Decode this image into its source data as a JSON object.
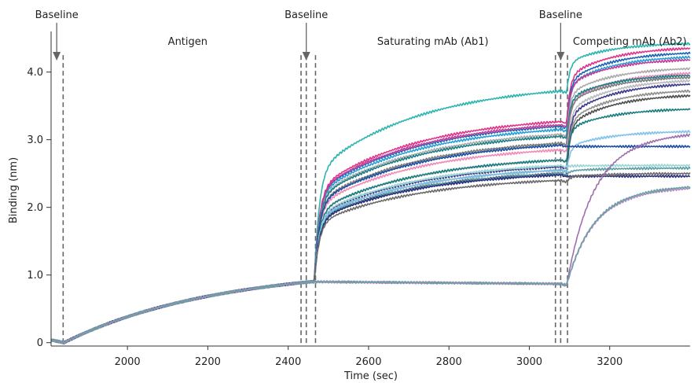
{
  "chart_data": {
    "type": "line",
    "xlabel": "Time (sec)",
    "ylabel": "Binding (nm)",
    "xlim": [
      1810,
      3400
    ],
    "ylim": [
      -0.05,
      4.6
    ],
    "x_ticks": [
      2000,
      2200,
      2400,
      2600,
      2800,
      3000,
      3200
    ],
    "y_ticks": [
      0,
      1.0,
      2.0,
      3.0,
      4.0
    ],
    "y_tick_labels": [
      "0",
      "1.0",
      "2.0",
      "3.0",
      "4.0"
    ],
    "grid": false,
    "phase_boundaries": [
      1840,
      2432,
      2445,
      2468,
      3065,
      3078,
      3095
    ],
    "phase_labels": [
      {
        "text": "Antigen",
        "x": 2150,
        "y": 4.45
      },
      {
        "text": "Saturating mAb (Ab1)",
        "x": 2760,
        "y": 4.45
      },
      {
        "text": "Competing mAb (Ab2)",
        "x": 3250,
        "y": 4.45
      }
    ],
    "baseline_markers": [
      {
        "text": "Baseline",
        "x": 1824
      },
      {
        "text": "Baseline",
        "x": 2445
      },
      {
        "text": "Baseline",
        "x": 3078
      }
    ],
    "series_model": {
      "antigen_start": 1842,
      "ab1_start": 2465,
      "ab2_start": 3093,
      "antigen_end_level": 0.9
    },
    "series": [
      {
        "color": "#2bb5b0",
        "ab1_end": 3.72,
        "ab2_end": 4.42
      },
      {
        "color": "#e0338a",
        "ab1_end": 3.27,
        "ab2_end": 4.35
      },
      {
        "color": "#1c63b4",
        "ab1_end": 3.2,
        "ab2_end": 4.28
      },
      {
        "color": "#27a0d8",
        "ab1_end": 3.15,
        "ab2_end": 4.22
      },
      {
        "color": "#c23c97",
        "ab1_end": 3.22,
        "ab2_end": 4.18
      },
      {
        "color": "#aaaaaa",
        "ab1_end": 3.08,
        "ab2_end": 4.05
      },
      {
        "color": "#f08ab8",
        "ab1_end": 2.85,
        "ab2_end": 3.98
      },
      {
        "color": "#1d7f86",
        "ab1_end": 3.05,
        "ab2_end": 3.95
      },
      {
        "color": "#7c7c7c",
        "ab1_end": 2.95,
        "ab2_end": 3.92
      },
      {
        "color": "#b9b9c2",
        "ab1_end": 2.7,
        "ab2_end": 3.87
      },
      {
        "color": "#3b3b8a",
        "ab1_end": 2.6,
        "ab2_end": 3.82
      },
      {
        "color": "#8f8f8f",
        "ab1_end": 2.55,
        "ab2_end": 3.72
      },
      {
        "color": "#4f4f4f",
        "ab1_end": 2.5,
        "ab2_end": 3.65
      },
      {
        "color": "#197d80",
        "ab1_end": 2.7,
        "ab2_end": 3.45
      },
      {
        "color": "#7fc3ea",
        "ab1_end": 2.55,
        "ab2_end": 3.12
      },
      {
        "color": "#1c4fa0",
        "ab1_end": 2.92,
        "ab2_end": 2.9
      },
      {
        "color": "#9ad6d4",
        "ab1_end": 2.62,
        "ab2_end": 2.62
      },
      {
        "color": "#5b9ea3",
        "ab1_end": 2.5,
        "ab2_end": 2.58
      },
      {
        "color": "#2b2f7d",
        "ab1_end": 2.48,
        "ab2_end": 2.46
      },
      {
        "color": "#6a6a6a",
        "ab1_end": 2.4,
        "ab2_end": 2.5
      },
      {
        "color": "#9e6fb0",
        "ab1_end": 0.87,
        "ab2_end": 3.07
      },
      {
        "color": "#b08bc2",
        "ab1_end": 0.87,
        "ab2_end": 2.28
      },
      {
        "color": "#6e9fa5",
        "ab1_end": 0.88,
        "ab2_end": 2.3
      }
    ]
  }
}
